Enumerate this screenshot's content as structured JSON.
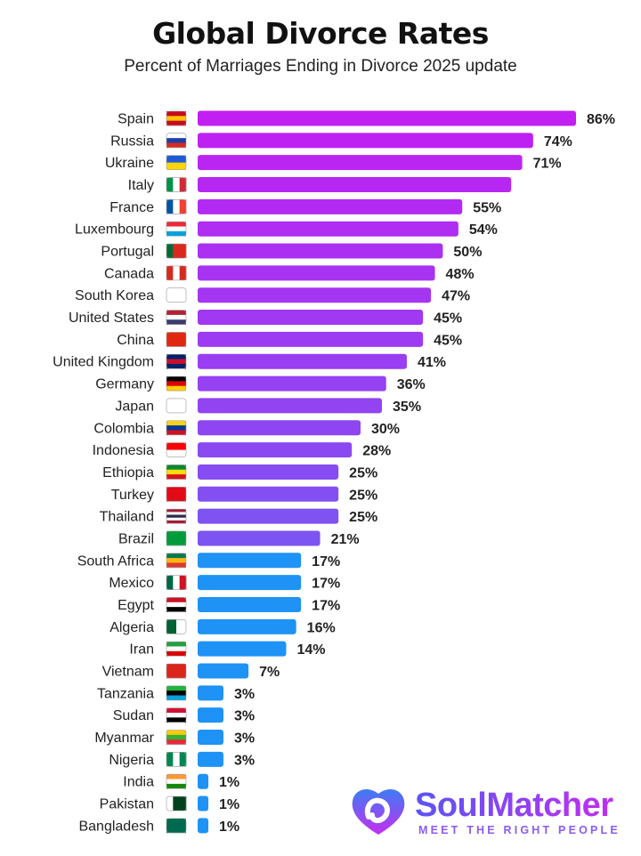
{
  "chart_data": {
    "type": "bar",
    "orientation": "horizontal",
    "title": "Global Divorce Rates",
    "subtitle": "Percent of Marriages Ending in Divorce 2025 update",
    "categories": [
      "Spain",
      "Russia",
      "Ukraine",
      "Italy",
      "France",
      "Luxembourg",
      "Portugal",
      "Canada",
      "South Korea",
      "United States",
      "China",
      "United Kingdom",
      "Germany",
      "Japan",
      "Colombia",
      "Indonesia",
      "Ethiopia",
      "Turkey",
      "Thailand",
      "Brazil",
      "South Africa",
      "Mexico",
      "Egypt",
      "Algeria",
      "Iran",
      "Vietnam",
      "Tanzania",
      "Sudan",
      "Myanmar",
      "Nigeria",
      "India",
      "Pakistan",
      "Bangladesh"
    ],
    "values": [
      86,
      74,
      71,
      68,
      55,
      54,
      50,
      48,
      47,
      45,
      45,
      41,
      36,
      35,
      30,
      28,
      25,
      25,
      25,
      21,
      17,
      17,
      17,
      16,
      14,
      7,
      3,
      3,
      3,
      3,
      1,
      1,
      1
    ],
    "labels": [
      "86%",
      "74%",
      "71%",
      "",
      "55%",
      "54%",
      "50%",
      "48%",
      "47%",
      "45%",
      "45%",
      "41%",
      "36%",
      "35%",
      "30%",
      "28%",
      "25%",
      "25%",
      "25%",
      "21%",
      "17%",
      "17%",
      "17%",
      "16%",
      "14%",
      "7%",
      "3%",
      "3%",
      "3%",
      "3%",
      "1%",
      "1%",
      "1%"
    ],
    "value_unit": "%",
    "grid": false,
    "legend": "none",
    "colors": {
      "top": "#c21ff2",
      "middle": "#7b55f2",
      "bottom": "#1e93f5"
    },
    "flags": [
      [
        "#c60b1e",
        "#ffc400",
        "#c60b1e"
      ],
      [
        "#ffffff",
        "#1c3fa8",
        "#d52b1e"
      ],
      [
        "#1f5bd6",
        "#ffd500"
      ],
      [
        "#009246v",
        "#ffffff",
        "#ce2b37"
      ],
      [
        "#0055a4v",
        "#ffffff",
        "#ef4135"
      ],
      [
        "#ed2939",
        "#ffffff",
        "#00a1de"
      ],
      [
        "#046a38v",
        "#da291c",
        "#da291c"
      ],
      [
        "#d52b1ev",
        "#ffffff",
        "#d52b1e"
      ],
      [
        "#ffffff",
        "#ffffff"
      ],
      [
        "#b22234",
        "#ffffff",
        "#3c3b6e"
      ],
      [
        "#de2910",
        "#de2910"
      ],
      [
        "#012169",
        "#c8102e",
        "#012169"
      ],
      [
        "#000000",
        "#dd0000",
        "#ffce00"
      ],
      [
        "#ffffff",
        "#ffffff"
      ],
      [
        "#fcd116",
        "#003893",
        "#ce1126"
      ],
      [
        "#ff0000",
        "#ffffff"
      ],
      [
        "#078930",
        "#fcdd09",
        "#da121a"
      ],
      [
        "#e30a17",
        "#e30a17"
      ],
      [
        "#a51931",
        "#f4f5f8",
        "#2d2a4a",
        "#f4f5f8",
        "#a51931"
      ],
      [
        "#009c3b",
        "#009c3b"
      ],
      [
        "#007a4d",
        "#ffb612",
        "#de3831"
      ],
      [
        "#006847v",
        "#ffffff",
        "#ce1126"
      ],
      [
        "#ce1126",
        "#ffffff",
        "#000000"
      ],
      [
        "#006233v",
        "#ffffff"
      ],
      [
        "#239f40",
        "#ffffff",
        "#da0000"
      ],
      [
        "#da251d",
        "#da251d"
      ],
      [
        "#1eb53a",
        "#000000",
        "#00a3dd"
      ],
      [
        "#d21034",
        "#ffffff",
        "#000000"
      ],
      [
        "#fecb00",
        "#34b233",
        "#ea2839"
      ],
      [
        "#008751v",
        "#ffffff",
        "#008751"
      ],
      [
        "#ff9933",
        "#ffffff",
        "#138808"
      ],
      [
        "#ffffffv",
        "#01411c",
        "#01411c"
      ],
      [
        "#006a4e",
        "#006a4e"
      ]
    ]
  },
  "brand": {
    "name": "SoulMatcher",
    "tagline": "MEET THE RIGHT PEOPLE"
  }
}
